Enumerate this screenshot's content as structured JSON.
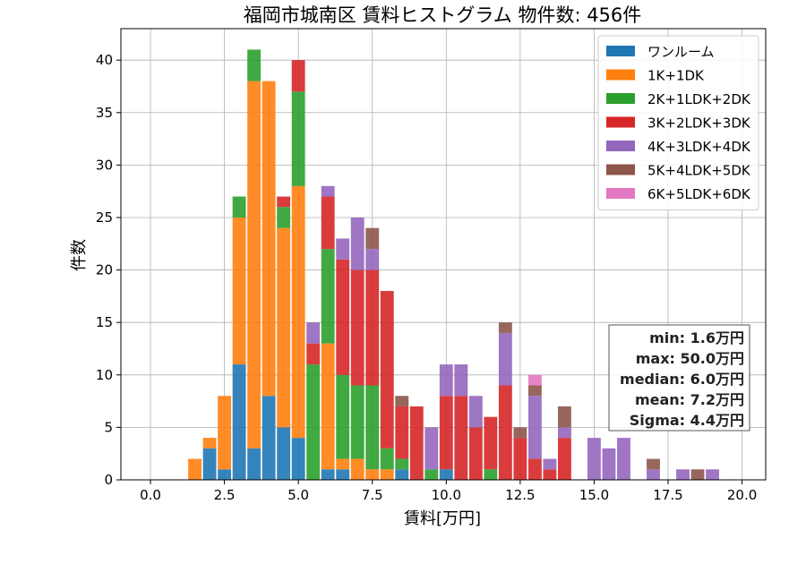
{
  "chart_data": {
    "type": "bar",
    "stacked": true,
    "title": "福岡市城南区 賃料ヒストグラム 物件数: 456件",
    "xlabel": "賃料[万円]",
    "ylabel": "件数",
    "xlim": [
      -1.0,
      20.8
    ],
    "ylim": [
      0,
      43
    ],
    "xticks": [
      0.0,
      2.5,
      5.0,
      7.5,
      10.0,
      12.5,
      15.0,
      17.5,
      20.0
    ],
    "xtick_labels": [
      "0.0",
      "2.5",
      "5.0",
      "7.5",
      "10.0",
      "12.5",
      "15.0",
      "17.5",
      "20.0"
    ],
    "yticks": [
      0,
      5,
      10,
      15,
      20,
      25,
      30,
      35,
      40
    ],
    "ytick_labels": [
      "0",
      "5",
      "10",
      "15",
      "20",
      "25",
      "30",
      "35",
      "40"
    ],
    "grid": true,
    "legend_position": "top-right",
    "bin_width": 0.5,
    "x": [
      1.5,
      2.0,
      2.5,
      3.0,
      3.5,
      4.0,
      4.5,
      5.0,
      5.5,
      6.0,
      6.5,
      7.0,
      7.5,
      8.0,
      8.5,
      9.0,
      9.5,
      10.0,
      10.5,
      11.0,
      11.5,
      12.0,
      12.5,
      13.0,
      13.5,
      14.0,
      14.5,
      15.0,
      15.5,
      16.0,
      16.5,
      17.0,
      17.5,
      18.0,
      18.5,
      19.0
    ],
    "series": [
      {
        "name": "ワンルーム",
        "color": "#1f77b4",
        "values": [
          0,
          3,
          1,
          11,
          3,
          8,
          5,
          4,
          0,
          1,
          1,
          0,
          0,
          0,
          1,
          0,
          0,
          1,
          0,
          0,
          0,
          0,
          0,
          0,
          0,
          0,
          0,
          0,
          0,
          0,
          0,
          0,
          0,
          0,
          0,
          0
        ]
      },
      {
        "name": "1K+1DK",
        "color": "#ff7f0e",
        "values": [
          2,
          1,
          7,
          14,
          35,
          30,
          19,
          24,
          0,
          12,
          1,
          2,
          1,
          1,
          0,
          0,
          0,
          0,
          0,
          0,
          0,
          0,
          0,
          0,
          0,
          0,
          0,
          0,
          0,
          0,
          0,
          0,
          0,
          0,
          0,
          0
        ]
      },
      {
        "name": "2K+1LDK+2DK",
        "color": "#2ca02c",
        "values": [
          0,
          0,
          0,
          2,
          3,
          0,
          2,
          9,
          11,
          9,
          8,
          7,
          8,
          2,
          1,
          0,
          1,
          0,
          0,
          0,
          1,
          0,
          0,
          0,
          0,
          0,
          0,
          0,
          0,
          0,
          0,
          0,
          0,
          0,
          0,
          0
        ]
      },
      {
        "name": "3K+2LDK+3DK",
        "color": "#d62728",
        "values": [
          0,
          0,
          0,
          0,
          0,
          0,
          1,
          3,
          2,
          5,
          11,
          11,
          11,
          15,
          5,
          7,
          0,
          7,
          8,
          5,
          5,
          9,
          4,
          2,
          1,
          4,
          0,
          0,
          0,
          0,
          0,
          0,
          0,
          0,
          0,
          0
        ]
      },
      {
        "name": "4K+3LDK+4DK",
        "color": "#9467bd",
        "values": [
          0,
          0,
          0,
          0,
          0,
          0,
          0,
          0,
          2,
          1,
          2,
          5,
          2,
          0,
          0,
          0,
          4,
          3,
          3,
          3,
          0,
          5,
          0,
          6,
          1,
          1,
          0,
          4,
          3,
          4,
          0,
          1,
          0,
          1,
          0,
          1
        ]
      },
      {
        "name": "5K+4LDK+5DK",
        "color": "#8c564b",
        "values": [
          0,
          0,
          0,
          0,
          0,
          0,
          0,
          0,
          0,
          0,
          0,
          0,
          2,
          0,
          1,
          0,
          0,
          0,
          0,
          0,
          0,
          1,
          1,
          1,
          0,
          2,
          0,
          0,
          0,
          0,
          0,
          1,
          0,
          0,
          1,
          0
        ]
      },
      {
        "name": "6K+5LDK+6DK",
        "color": "#e377c2",
        "values": [
          0,
          0,
          0,
          0,
          0,
          0,
          0,
          0,
          0,
          0,
          0,
          0,
          0,
          0,
          0,
          0,
          0,
          0,
          0,
          0,
          0,
          0,
          0,
          1,
          0,
          0,
          0,
          0,
          0,
          0,
          0,
          0,
          0,
          0,
          0,
          0
        ]
      }
    ],
    "stats": [
      "min: 1.6万円",
      "max: 50.0万円",
      "median: 6.0万円",
      "mean: 7.2万円",
      "Sigma: 4.4万円"
    ]
  }
}
